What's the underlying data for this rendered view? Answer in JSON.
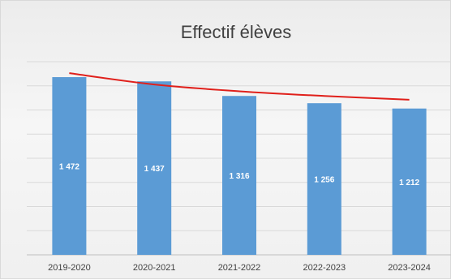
{
  "chart_data": {
    "type": "bar",
    "title": "Effectif élèves",
    "categories": [
      "2019-2020",
      "2020-2021",
      "2021-2022",
      "2022-2023",
      "2023-2024"
    ],
    "values": [
      1472,
      1437,
      1316,
      1256,
      1212
    ],
    "data_labels": [
      "1 472",
      "1 437",
      "1 316",
      "1 256",
      "1 212"
    ],
    "xlabel": "",
    "ylabel": "",
    "ylim": [
      0,
      1600
    ],
    "grid": true,
    "legend": "none",
    "trendline": {
      "type": "logarithmic",
      "values": [
        1505,
        1411,
        1355,
        1316,
        1285
      ]
    },
    "colors": {
      "bar": "#5b9bd5",
      "trendline": "#e0201b",
      "grid": "#d9d9d9"
    }
  }
}
